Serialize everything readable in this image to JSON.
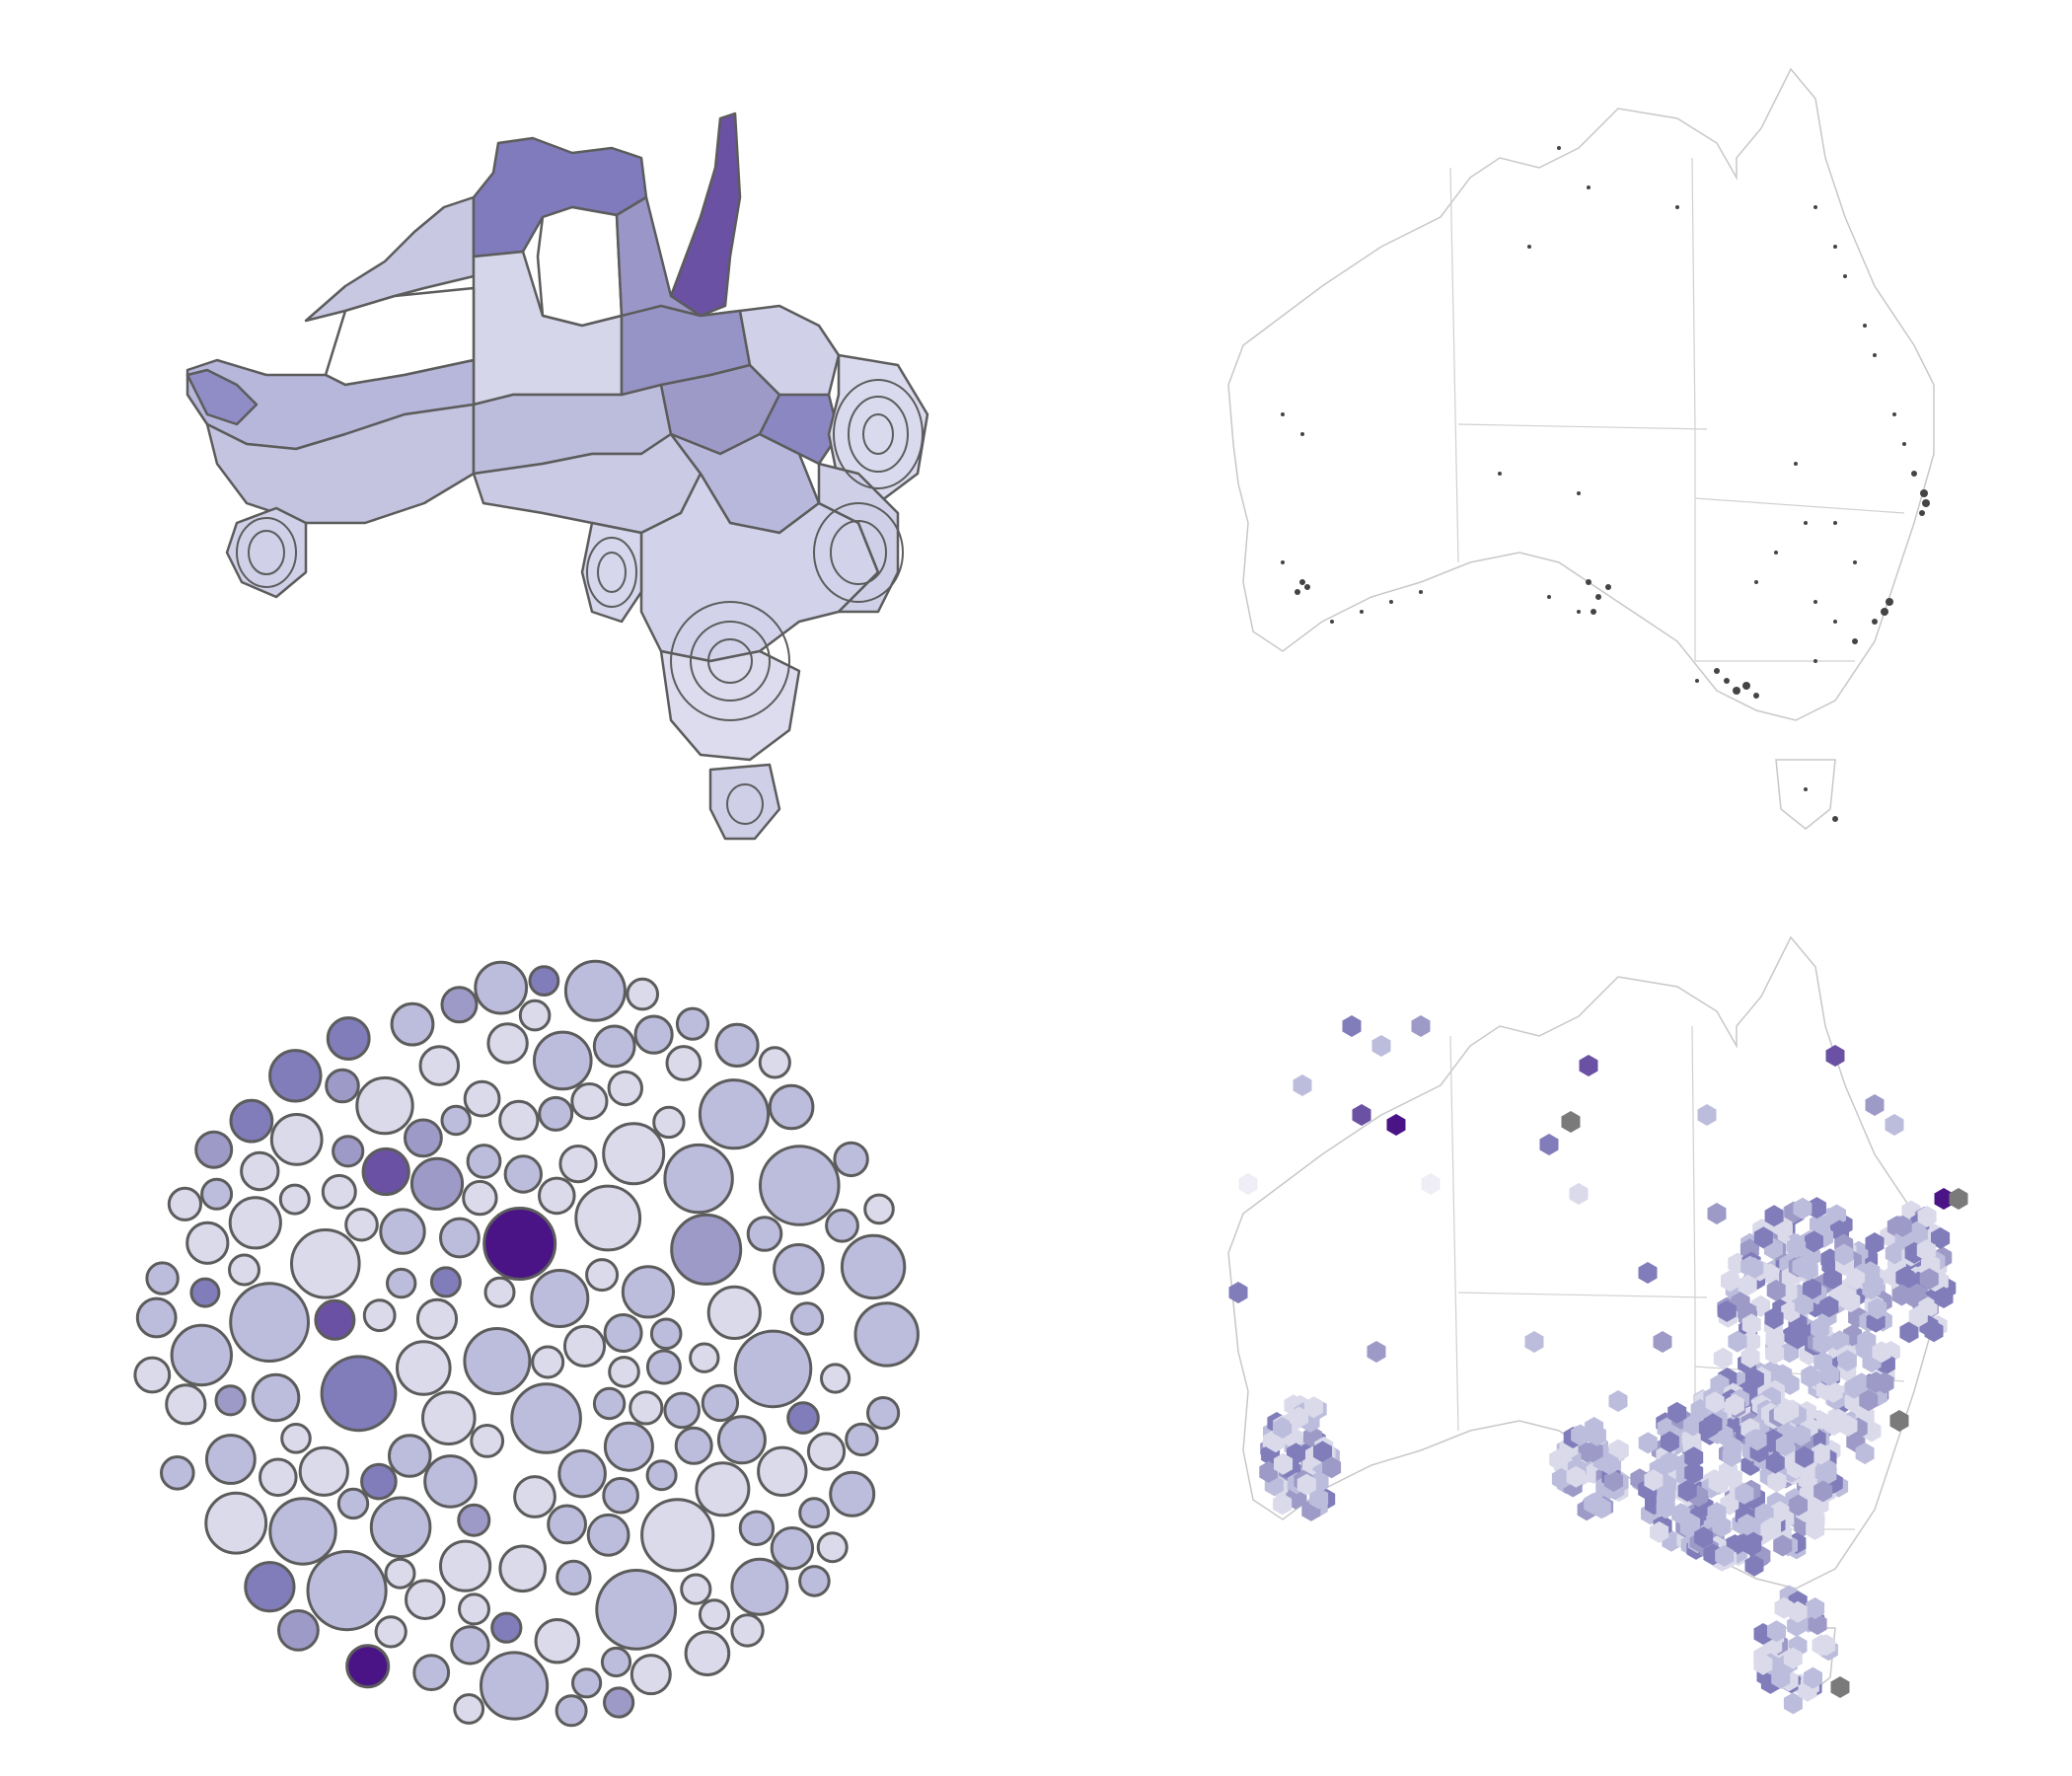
{
  "figure": {
    "panels": [
      "cartogram",
      "point-map",
      "bubble-cluster",
      "hex-map"
    ]
  },
  "palette": {
    "outline_dark": "#5c5c5c",
    "outline_light": "#c8c8c8",
    "state_border": "#d0d0d0",
    "point_color": "#444444",
    "missing_color": "#7a7a7a",
    "purple_scale": [
      "#efedf5",
      "#dadaeb",
      "#bcbddc",
      "#9e9ac8",
      "#807dba",
      "#6a51a3",
      "#4a1486"
    ]
  },
  "legend": null,
  "title": null
}
